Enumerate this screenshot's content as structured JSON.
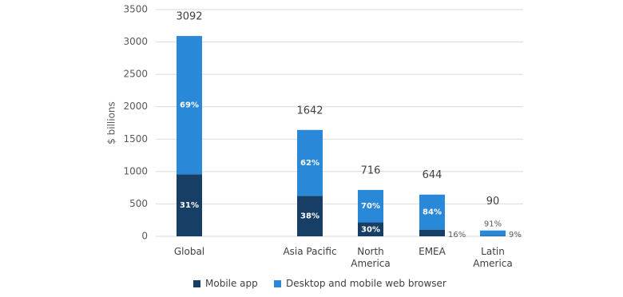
{
  "chart_data": {
    "type": "bar",
    "stacked": true,
    "y_label": "$ billions",
    "categories": [
      "Global",
      "Asia Pacific",
      "North America",
      "EMEA",
      "Latin America"
    ],
    "totals": [
      3092,
      1642,
      716,
      644,
      90
    ],
    "series": [
      {
        "name": "Mobile app",
        "color": "#173f66",
        "values": [
          958,
          624,
          215,
          103,
          8
        ],
        "share_labels": [
          "31%",
          "38%",
          "30%",
          "16%",
          "9%"
        ]
      },
      {
        "name": "Desktop and mobile web browser",
        "color": "#2a88d8",
        "values": [
          2134,
          1018,
          501,
          541,
          82
        ],
        "share_labels": [
          "69%",
          "62%",
          "70%",
          "84%",
          "91%"
        ]
      }
    ],
    "ylim": [
      0,
      3500
    ],
    "yticks": [
      0,
      500,
      1000,
      1500,
      2000,
      2500,
      3000,
      3500
    ],
    "grid": true
  }
}
